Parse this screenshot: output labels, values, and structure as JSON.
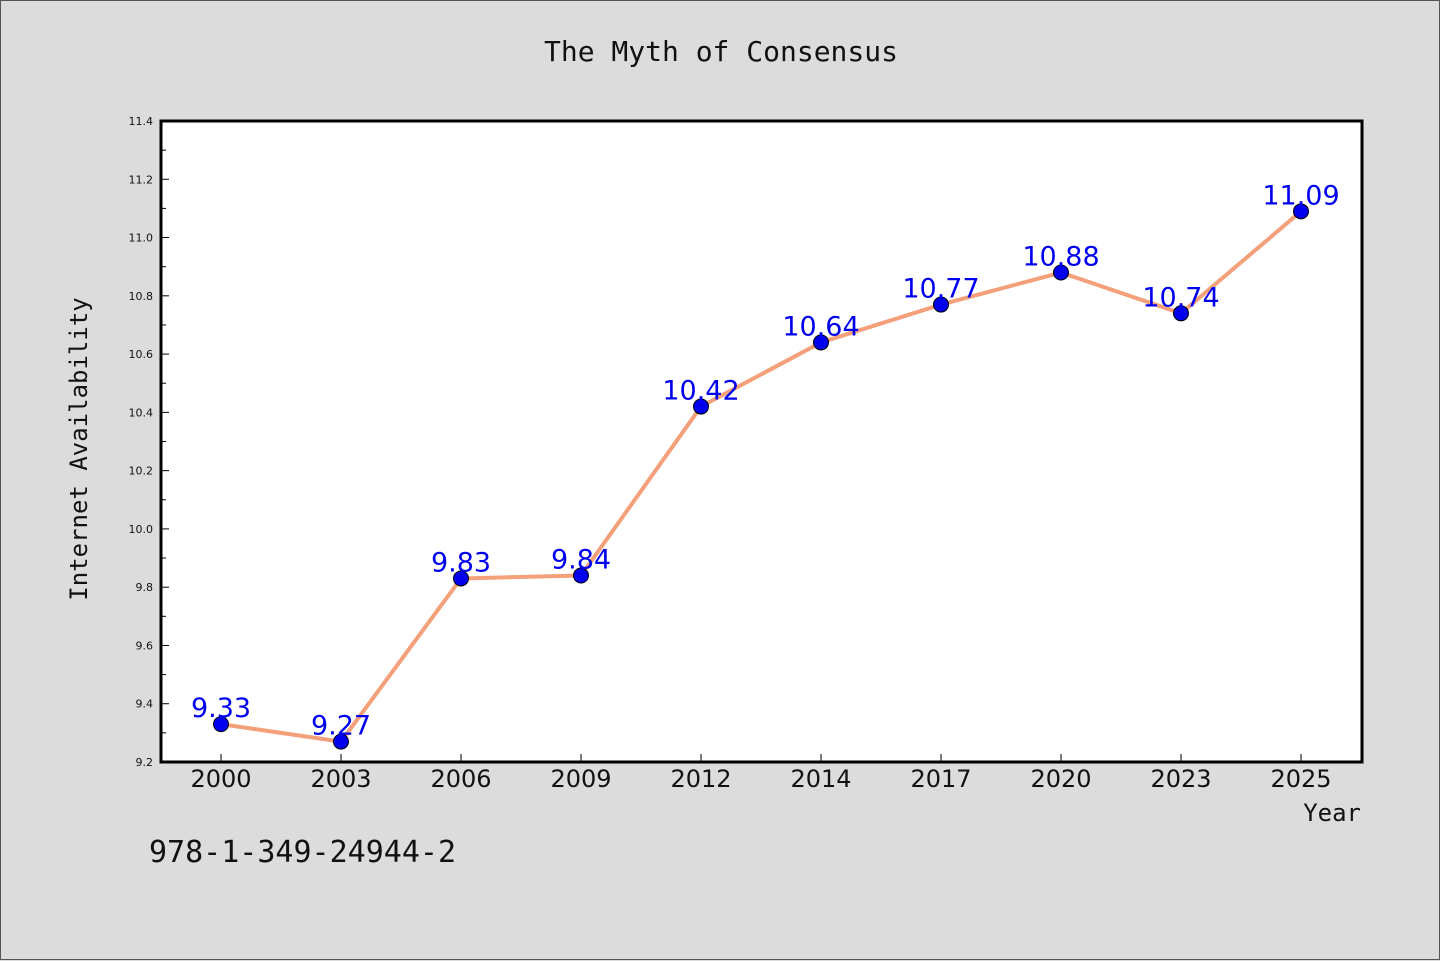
{
  "chart_data": {
    "type": "line",
    "title": "The Myth of Consensus",
    "xlabel": "Year",
    "ylabel": "Internet Availability",
    "categories": [
      "2000",
      "2003",
      "2006",
      "2009",
      "2012",
      "2014",
      "2017",
      "2020",
      "2023",
      "2025"
    ],
    "series": [
      {
        "values": [
          9.33,
          9.27,
          9.83,
          9.84,
          10.42,
          10.64,
          10.77,
          10.88,
          10.74,
          11.09
        ],
        "line_color": "#f4a07a",
        "marker_color": "#0000ee",
        "label_color": "#0000ee"
      }
    ],
    "ylim": [
      9.2,
      11.4
    ],
    "yticks": [
      9.2,
      9.4,
      9.6,
      9.8,
      10.0,
      10.2,
      10.4,
      10.6,
      10.8,
      11.0,
      11.2,
      11.4
    ],
    "grid": false,
    "legend": "none"
  },
  "footer": {
    "isbn": "978-1-349-24944-2"
  }
}
